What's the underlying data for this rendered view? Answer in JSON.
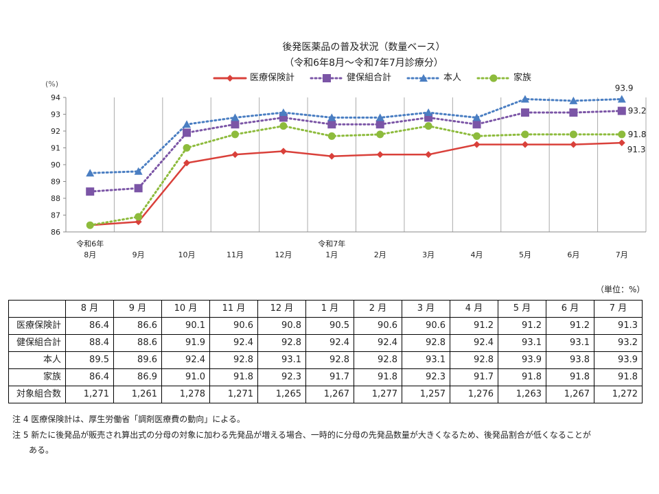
{
  "chart_data": {
    "type": "line",
    "title": "後発医薬品の普及状況（数量ベース）",
    "subtitle": "（令和6年8月～令和7年7月診療分）",
    "ylabel": "(%)",
    "ylim": [
      86,
      94
    ],
    "yticks": [
      "86",
      "87",
      "88",
      "89",
      "90",
      "91",
      "92",
      "93",
      "94"
    ],
    "categories": [
      "8月",
      "9月",
      "10月",
      "11月",
      "12月",
      "1月",
      "2月",
      "3月",
      "4月",
      "5月",
      "6月",
      "7月"
    ],
    "year_labels": {
      "0": "令和6年",
      "5": "令和7年"
    },
    "grid": "vertical",
    "legend_position": "top",
    "series": [
      {
        "name": "医療保険計",
        "color": "#d9403a",
        "marker": "diamond",
        "line": "solid",
        "values": [
          86.4,
          86.6,
          90.1,
          90.6,
          90.8,
          90.5,
          90.6,
          90.6,
          91.2,
          91.2,
          91.2,
          91.3
        ],
        "end_label": "91.3"
      },
      {
        "name": "健保組合計",
        "color": "#7b55a6",
        "marker": "square",
        "line": "dotted",
        "values": [
          88.4,
          88.6,
          91.9,
          92.4,
          92.8,
          92.4,
          92.4,
          92.8,
          92.4,
          93.1,
          93.1,
          93.2
        ],
        "end_label": "93.2"
      },
      {
        "name": "本人",
        "color": "#4a7ec2",
        "marker": "triangle",
        "line": "dotted",
        "values": [
          89.5,
          89.6,
          92.4,
          92.8,
          93.1,
          92.8,
          92.8,
          93.1,
          92.8,
          93.9,
          93.8,
          93.9
        ],
        "end_label": "93.9"
      },
      {
        "name": "家族",
        "color": "#8dbb3c",
        "marker": "circle",
        "line": "dotted",
        "values": [
          86.4,
          86.9,
          91.0,
          91.8,
          92.3,
          91.7,
          91.8,
          92.3,
          91.7,
          91.8,
          91.8,
          91.8
        ],
        "end_label": "91.8"
      }
    ]
  },
  "table": {
    "unit": "（単位：%）",
    "headers": [
      "8 月",
      "9 月",
      "10 月",
      "11 月",
      "12 月",
      "1 月",
      "2 月",
      "3 月",
      "4 月",
      "5 月",
      "6 月",
      "7 月"
    ],
    "rows": [
      {
        "label": "医療保険計",
        "values": [
          "86.4",
          "86.6",
          "90.1",
          "90.6",
          "90.8",
          "90.5",
          "90.6",
          "90.6",
          "91.2",
          "91.2",
          "91.2",
          "91.3"
        ]
      },
      {
        "label": "健保組合計",
        "values": [
          "88.4",
          "88.6",
          "91.9",
          "92.4",
          "92.8",
          "92.4",
          "92.4",
          "92.8",
          "92.4",
          "93.1",
          "93.1",
          "93.2"
        ]
      },
      {
        "label": "本人",
        "values": [
          "89.5",
          "89.6",
          "92.4",
          "92.8",
          "93.1",
          "92.8",
          "92.8",
          "93.1",
          "92.8",
          "93.9",
          "93.8",
          "93.9"
        ]
      },
      {
        "label": "家族",
        "values": [
          "86.4",
          "86.9",
          "91.0",
          "91.8",
          "92.3",
          "91.7",
          "91.8",
          "92.3",
          "91.7",
          "91.8",
          "91.8",
          "91.8"
        ]
      },
      {
        "label": "対象組合数",
        "values": [
          "1,271",
          "1,261",
          "1,278",
          "1,271",
          "1,265",
          "1,267",
          "1,277",
          "1,257",
          "1,276",
          "1,263",
          "1,267",
          "1,272"
        ]
      }
    ]
  },
  "notes": [
    "注 4  医療保険計は、厚生労働省「調剤医療費の動向」による。",
    "注 5  新たに後発品が販売され算出式の分母の対象に加わる先発品が増える場合、一時的に分母の先発品数量が大きくなるため、後発品割合が低くなることが",
    "ある。"
  ]
}
